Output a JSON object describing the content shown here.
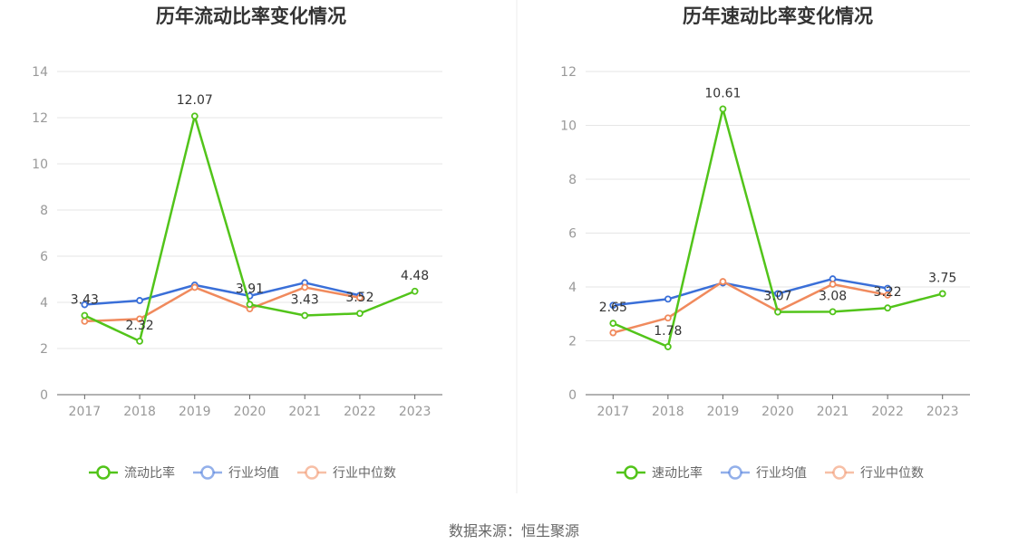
{
  "source": "数据来源：恒生聚源",
  "chart_data": [
    {
      "type": "line",
      "title": "历年流动比率变化情况",
      "categories": [
        "2017",
        "2018",
        "2019",
        "2020",
        "2021",
        "2022",
        "2023"
      ],
      "ylim": [
        0,
        14
      ],
      "yticks": [
        0,
        2,
        4,
        6,
        8,
        10,
        12,
        14
      ],
      "grid": true,
      "legend_position": "bottom",
      "series": [
        {
          "name": "流动比率",
          "color": "#52c41a",
          "labeled": true,
          "values": [
            3.43,
            2.32,
            12.07,
            3.91,
            3.43,
            3.52,
            4.48
          ]
        },
        {
          "name": "行业均值",
          "color": "#3a6fd8",
          "labeled": false,
          "values": [
            3.9,
            4.08,
            4.75,
            4.28,
            4.85,
            4.3,
            null
          ]
        },
        {
          "name": "行业中位数",
          "color": "#f08a5d",
          "labeled": false,
          "values": [
            3.18,
            3.28,
            4.65,
            3.72,
            4.65,
            4.2,
            null
          ]
        }
      ]
    },
    {
      "type": "line",
      "title": "历年速动比率变化情况",
      "categories": [
        "2017",
        "2018",
        "2019",
        "2020",
        "2021",
        "2022",
        "2023"
      ],
      "ylim": [
        0,
        12
      ],
      "yticks": [
        0,
        2,
        4,
        6,
        8,
        10,
        12
      ],
      "grid": true,
      "legend_position": "bottom",
      "series": [
        {
          "name": "速动比率",
          "color": "#52c41a",
          "labeled": true,
          "values": [
            2.65,
            1.78,
            10.61,
            3.07,
            3.08,
            3.22,
            3.75
          ]
        },
        {
          "name": "行业均值",
          "color": "#3a6fd8",
          "labeled": false,
          "values": [
            3.32,
            3.55,
            4.15,
            3.75,
            4.3,
            3.95,
            null
          ]
        },
        {
          "name": "行业中位数",
          "color": "#f08a5d",
          "labeled": false,
          "values": [
            2.3,
            2.85,
            4.2,
            3.1,
            4.1,
            3.7,
            null
          ]
        }
      ]
    }
  ]
}
